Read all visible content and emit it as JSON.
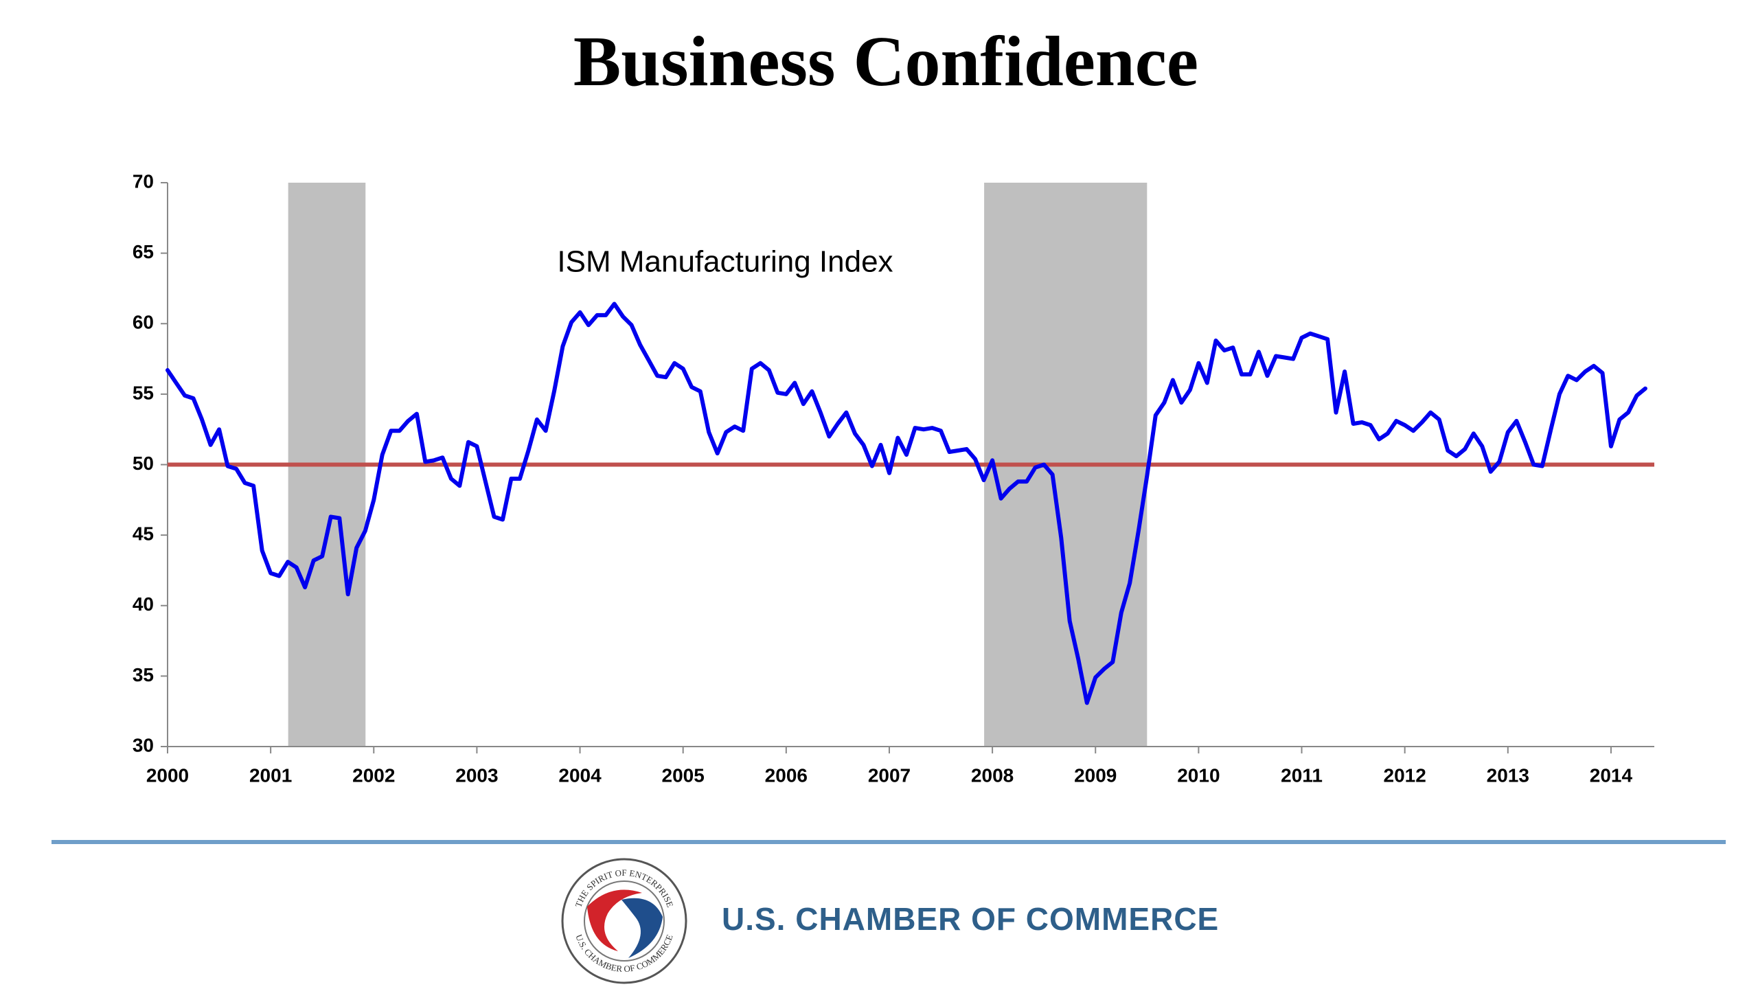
{
  "chart_data": {
    "type": "line",
    "title": "Business Confidence",
    "annotation": "ISM Manufacturing Index",
    "x": [
      2000,
      2000.083,
      2000.167,
      2000.25,
      2000.333,
      2000.417,
      2000.5,
      2000.583,
      2000.667,
      2000.75,
      2000.833,
      2000.917,
      2001,
      2001.083,
      2001.167,
      2001.25,
      2001.333,
      2001.417,
      2001.5,
      2001.583,
      2001.667,
      2001.75,
      2001.833,
      2001.917,
      2002,
      2002.083,
      2002.167,
      2002.25,
      2002.333,
      2002.417,
      2002.5,
      2002.583,
      2002.667,
      2002.75,
      2002.833,
      2002.917,
      2003,
      2003.083,
      2003.167,
      2003.25,
      2003.333,
      2003.417,
      2003.5,
      2003.583,
      2003.667,
      2003.75,
      2003.833,
      2003.917,
      2004,
      2004.083,
      2004.167,
      2004.25,
      2004.333,
      2004.417,
      2004.5,
      2004.583,
      2004.667,
      2004.75,
      2004.833,
      2004.917,
      2005,
      2005.083,
      2005.167,
      2005.25,
      2005.333,
      2005.417,
      2005.5,
      2005.583,
      2005.667,
      2005.75,
      2005.833,
      2005.917,
      2006,
      2006.083,
      2006.167,
      2006.25,
      2006.333,
      2006.417,
      2006.5,
      2006.583,
      2006.667,
      2006.75,
      2006.833,
      2006.917,
      2007,
      2007.083,
      2007.167,
      2007.25,
      2007.333,
      2007.417,
      2007.5,
      2007.583,
      2007.667,
      2007.75,
      2007.833,
      2007.917,
      2008,
      2008.083,
      2008.167,
      2008.25,
      2008.333,
      2008.417,
      2008.5,
      2008.583,
      2008.667,
      2008.75,
      2008.833,
      2008.917,
      2009,
      2009.083,
      2009.167,
      2009.25,
      2009.333,
      2009.417,
      2009.5,
      2009.583,
      2009.667,
      2009.75,
      2009.833,
      2009.917,
      2010,
      2010.083,
      2010.167,
      2010.25,
      2010.333,
      2010.417,
      2010.5,
      2010.583,
      2010.667,
      2010.75,
      2010.833,
      2010.917,
      2011,
      2011.083,
      2011.167,
      2011.25,
      2011.333,
      2011.417,
      2011.5,
      2011.583,
      2011.667,
      2011.75,
      2011.833,
      2011.917,
      2012,
      2012.083,
      2012.167,
      2012.25,
      2012.333,
      2012.417,
      2012.5,
      2012.583,
      2012.667,
      2012.75,
      2012.833,
      2012.917,
      2013,
      2013.083,
      2013.167,
      2013.25,
      2013.333,
      2013.417,
      2013.5,
      2013.583,
      2013.667,
      2013.75,
      2013.833,
      2013.917,
      2014,
      2014.083,
      2014.167,
      2014.25,
      2014.333
    ],
    "series": [
      {
        "color": "#0000ee",
        "values": [
          56.7,
          55.8,
          54.9,
          54.7,
          53.2,
          51.4,
          52.5,
          49.9,
          49.7,
          48.7,
          48.5,
          43.9,
          42.3,
          42.1,
          43.1,
          42.7,
          41.3,
          43.2,
          43.5,
          46.3,
          46.2,
          40.8,
          44.1,
          45.3,
          47.5,
          50.7,
          52.4,
          52.4,
          53.1,
          53.6,
          50.2,
          50.3,
          50.5,
          49.0,
          48.5,
          51.6,
          51.3,
          48.8,
          46.3,
          46.1,
          49.0,
          49.0,
          51.0,
          53.2,
          52.4,
          55.2,
          58.4,
          60.1,
          60.8,
          59.9,
          60.6,
          60.6,
          61.4,
          60.5,
          59.9,
          58.5,
          57.4,
          56.3,
          56.2,
          57.2,
          56.8,
          55.5,
          55.2,
          52.3,
          50.8,
          52.3,
          52.7,
          52.4,
          56.8,
          57.2,
          56.7,
          55.1,
          55.0,
          55.8,
          54.3,
          55.2,
          53.7,
          52.0,
          52.9,
          53.7,
          52.2,
          51.4,
          49.9,
          51.4,
          49.4,
          51.9,
          50.7,
          52.6,
          52.5,
          52.6,
          52.4,
          50.9,
          51.0,
          51.1,
          50.4,
          48.9,
          50.3,
          47.6,
          48.3,
          48.8,
          48.8,
          49.8,
          50.0,
          49.3,
          44.8,
          38.9,
          36.2,
          33.1,
          34.9,
          35.5,
          36.0,
          39.5,
          41.6,
          45.3,
          49.2,
          53.5,
          54.4,
          56.0,
          54.4,
          55.3,
          57.2,
          55.8,
          58.8,
          58.1,
          58.3,
          56.4,
          56.4,
          58.0,
          56.3,
          57.7,
          57.6,
          57.5,
          59.0,
          59.3,
          59.1,
          58.9,
          53.7,
          56.6,
          52.9,
          53.0,
          52.8,
          51.8,
          52.2,
          53.1,
          52.8,
          52.4,
          53.0,
          53.7,
          53.2,
          51.0,
          50.6,
          51.1,
          52.2,
          51.3,
          49.5,
          50.2,
          52.3,
          53.1,
          51.6,
          50.0,
          49.9,
          52.5,
          55.0,
          56.3,
          56.0,
          56.6,
          57.0,
          56.5,
          51.3,
          53.2,
          53.7,
          54.9,
          55.4
        ]
      }
    ],
    "xlim": [
      2000,
      2014.42
    ],
    "xticks": [
      2000,
      2001,
      2002,
      2003,
      2004,
      2005,
      2006,
      2007,
      2008,
      2009,
      2010,
      2011,
      2012,
      2013,
      2014
    ],
    "ylim": [
      30,
      70
    ],
    "yticks": [
      30,
      35,
      40,
      45,
      50,
      55,
      60,
      65,
      70
    ],
    "grid": false,
    "reference_line": {
      "value": 50,
      "color": "#c0504d"
    },
    "shaded_regions": [
      {
        "start": 2001.17,
        "end": 2001.92,
        "color": "#bfbfbf"
      },
      {
        "start": 2007.92,
        "end": 2009.5,
        "color": "#bfbfbf"
      }
    ]
  },
  "logo": {
    "ring_text": "THE SPIRIT OF ENTERPRISE",
    "ring_text_bottom": "U.S. CHAMBER OF COMMERCE"
  },
  "footer": {
    "organization": "U.S. CHAMBER OF COMMERCE"
  }
}
